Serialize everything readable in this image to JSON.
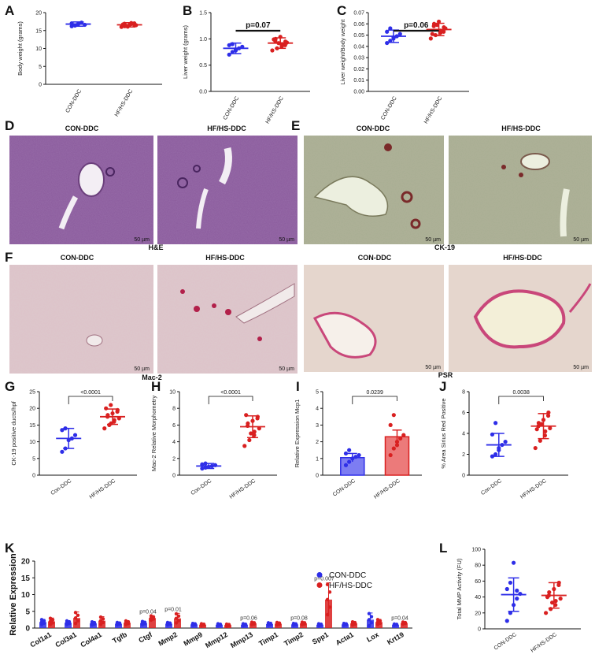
{
  "colors": {
    "con": "#2e2ee8",
    "hf": "#d92020",
    "he_bg": "#8a5a9c",
    "ck_bg": "#a7ae92",
    "mac_bg": "#dcc9cc",
    "psr_bg": "#e5d6cd"
  },
  "panel_letters": [
    "A",
    "B",
    "C",
    "D",
    "E",
    "F",
    "G",
    "H",
    "I",
    "J",
    "K",
    "L"
  ],
  "micrographs": {
    "D": {
      "titles": [
        "CON-DDC",
        "HF/HS-DDC"
      ],
      "caption": "H&E",
      "scale": "50 µm"
    },
    "E": {
      "titles": [
        "CON-DDC",
        "HF/HS-DDC"
      ],
      "caption": "CK-19",
      "scale": "50 µm"
    },
    "F_mac": {
      "titles": [
        "CON-DDC",
        "HF/HS-DDC"
      ],
      "caption": "Mac-2",
      "scale": "50 µm"
    },
    "F_psr": {
      "titles": [
        "CON-DDC",
        "HF/HS-DDC"
      ],
      "caption": "PSR",
      "scale": "50 µm"
    }
  },
  "chart_data": [
    {
      "id": "A",
      "type": "scatter",
      "ylabel": "Body weight (grams)",
      "ylim": [
        0,
        20
      ],
      "yticks": [
        "0",
        "5",
        "10",
        "15",
        "20"
      ],
      "categories": [
        "CON-DDC",
        "HF/HS-DDC"
      ],
      "groups": [
        {
          "name": "CON-DDC",
          "mean": 16.8,
          "sd": 0.6,
          "points": [
            16.2,
            16.5,
            16.9,
            17.2,
            16.6,
            17.0,
            16.4,
            16.8
          ]
        },
        {
          "name": "HF/HS-DDC",
          "mean": 16.6,
          "sd": 0.6,
          "points": [
            16.0,
            16.3,
            16.8,
            17.1,
            16.5,
            16.9,
            16.2,
            16.6,
            17.0,
            16.4,
            16.7,
            16.1
          ]
        }
      ],
      "stat": ""
    },
    {
      "id": "B",
      "type": "scatter",
      "ylabel": "Liver weight (grams)",
      "ylim": [
        0,
        1.5
      ],
      "yticks": [
        "0.0",
        "0.5",
        "1.0",
        "1.5"
      ],
      "categories": [
        "CON-DDC",
        "HF/HS-DDC"
      ],
      "groups": [
        {
          "name": "CON-DDC",
          "mean": 0.82,
          "sd": 0.1,
          "points": [
            0.7,
            0.75,
            0.78,
            0.82,
            0.85,
            0.88,
            0.9,
            0.8
          ]
        },
        {
          "name": "HF/HS-DDC",
          "mean": 0.92,
          "sd": 0.1,
          "points": [
            0.78,
            0.82,
            0.86,
            0.9,
            0.93,
            0.96,
            1.0,
            1.04,
            0.88,
            0.95,
            0.99,
            0.92
          ]
        }
      ],
      "stat": "p=0.07"
    },
    {
      "id": "C",
      "type": "scatter",
      "ylabel": "Liver weight/Body weight",
      "ylim": [
        0,
        0.07
      ],
      "yticks": [
        "0.00",
        "0.01",
        "0.02",
        "0.03",
        "0.04",
        "0.05",
        "0.06",
        "0.07"
      ],
      "categories": [
        "CON-DDC",
        "HF/HS-DDC"
      ],
      "groups": [
        {
          "name": "CON-DDC",
          "mean": 0.049,
          "sd": 0.0055,
          "points": [
            0.043,
            0.045,
            0.047,
            0.049,
            0.051,
            0.053,
            0.056,
            0.048
          ]
        },
        {
          "name": "HF/HS-DDC",
          "mean": 0.055,
          "sd": 0.0055,
          "points": [
            0.047,
            0.05,
            0.052,
            0.054,
            0.056,
            0.058,
            0.06,
            0.062,
            0.053,
            0.057,
            0.051,
            0.059
          ]
        }
      ],
      "stat": "p=0.06"
    },
    {
      "id": "G",
      "type": "scatter",
      "ylabel": "CK-19 positive ducts/hpf",
      "ylim": [
        0,
        25
      ],
      "yticks": [
        "0",
        "5",
        "10",
        "15",
        "20",
        "25"
      ],
      "categories": [
        "Con-DDC",
        "HF/HS-DDC"
      ],
      "groups": [
        {
          "name": "Con-DDC",
          "mean": 11.0,
          "sd": 3.0,
          "points": [
            7.0,
            8.0,
            10.5,
            11.0,
            12.0,
            13.5,
            14.0
          ]
        },
        {
          "name": "HF/HS-DDC",
          "mean": 17.5,
          "sd": 2.3,
          "points": [
            14.0,
            15.0,
            16.0,
            16.5,
            17.0,
            17.5,
            18.0,
            18.5,
            19.0,
            19.5,
            20.0,
            21.0,
            15.5
          ]
        }
      ],
      "stat": "<0.0001"
    },
    {
      "id": "H",
      "type": "scatter",
      "ylabel": "Mac-2 Relative Morphometry",
      "ylim": [
        0,
        10
      ],
      "yticks": [
        "0",
        "2",
        "4",
        "6",
        "8",
        "10"
      ],
      "categories": [
        "Con-DDC",
        "HF/HS-DDC"
      ],
      "groups": [
        {
          "name": "Con-DDC",
          "mean": 1.1,
          "sd": 0.3,
          "points": [
            0.8,
            0.9,
            1.0,
            1.1,
            1.2,
            1.3,
            1.4
          ]
        },
        {
          "name": "HF/HS-DDC",
          "mean": 5.8,
          "sd": 1.3,
          "points": [
            3.5,
            4.2,
            4.8,
            5.2,
            5.6,
            5.9,
            6.2,
            6.5,
            6.8,
            7.0,
            7.2,
            5.0
          ]
        }
      ],
      "stat": "<0.0001"
    },
    {
      "id": "I",
      "type": "bar",
      "ylabel": "Relative Expression Mcp1",
      "ylim": [
        0,
        5
      ],
      "yticks": [
        "0",
        "1",
        "2",
        "3",
        "4",
        "5"
      ],
      "categories": [
        "CON-DDC",
        "HF/HS-DDC"
      ],
      "groups": [
        {
          "name": "CON-DDC",
          "mean": 1.05,
          "sem": 0.25,
          "points": [
            0.6,
            0.8,
            1.0,
            1.1,
            1.2,
            1.3,
            1.5
          ]
        },
        {
          "name": "HF/HS-DDC",
          "mean": 2.3,
          "sem": 0.4,
          "points": [
            1.2,
            1.6,
            2.0,
            2.2,
            2.4,
            3.0,
            3.6,
            1.8
          ]
        }
      ],
      "stat": "0.0239"
    },
    {
      "id": "J",
      "type": "scatter",
      "ylabel": "% Area Sirius Red Positive",
      "ylim": [
        0,
        8
      ],
      "yticks": [
        "0",
        "2",
        "4",
        "6",
        "8"
      ],
      "categories": [
        "Con-DDC",
        "HF/HS-DDC"
      ],
      "groups": [
        {
          "name": "Con-DDC",
          "mean": 2.9,
          "sd": 1.1,
          "points": [
            1.8,
            2.0,
            2.4,
            2.9,
            3.2,
            3.9,
            5.0,
            2.6
          ]
        },
        {
          "name": "HF/HS-DDC",
          "mean": 4.7,
          "sd": 1.2,
          "points": [
            2.6,
            3.3,
            3.8,
            4.2,
            4.5,
            4.7,
            5.0,
            5.3,
            5.7,
            6.0,
            4.4,
            4.9
          ]
        }
      ],
      "stat": "0.0038"
    },
    {
      "id": "K",
      "type": "bar",
      "ylabel": "Relative Expression",
      "ylim": [
        0,
        20
      ],
      "yticks": [
        "0",
        "5",
        "10",
        "15",
        "20"
      ],
      "categories": [
        "Col1a1",
        "Col3a1",
        "Col4a1",
        "Tgfb",
        "Ctgf",
        "Mmp2",
        "Mmp9",
        "Mmp12",
        "Mmp13",
        "Timp1",
        "Timp2",
        "Spp1",
        "Acta1",
        "Lox",
        "Krt19"
      ],
      "series": [
        {
          "name": "CON-DDC",
          "values": [
            1.8,
            1.6,
            1.4,
            1.3,
            1.5,
            1.3,
            1.1,
            1.0,
            1.0,
            1.2,
            1.1,
            1.0,
            1.1,
            2.5,
            1.0
          ],
          "errors": [
            0.8,
            0.6,
            0.5,
            0.4,
            0.5,
            0.4,
            0.3,
            0.3,
            0.3,
            0.4,
            0.3,
            0.3,
            0.3,
            2.0,
            0.2
          ]
        },
        {
          "name": "HF/HS-DDC",
          "values": [
            2.0,
            3.0,
            2.2,
            1.6,
            3.0,
            2.9,
            1.0,
            0.9,
            1.4,
            1.3,
            1.4,
            8.5,
            1.4,
            1.8,
            1.5
          ],
          "errors": [
            1.0,
            1.8,
            1.2,
            0.6,
            0.7,
            1.5,
            0.3,
            0.3,
            0.4,
            0.4,
            0.4,
            5.0,
            0.5,
            0.8,
            0.3
          ]
        }
      ],
      "pvalues": [
        {
          "category": "Ctgf",
          "text": "p=0.04"
        },
        {
          "category": "Mmp2",
          "text": "p=0.01"
        },
        {
          "category": "Mmp13",
          "text": "p=0.06"
        },
        {
          "category": "Timp2",
          "text": "p=0.08"
        },
        {
          "category": "Spp1",
          "text": "p=0.007"
        },
        {
          "category": "Krt19",
          "text": "p=0.04"
        }
      ],
      "legend": [
        "CON-DDC",
        "HF/HS-DDC"
      ],
      "legend_position": "top-right"
    },
    {
      "id": "L",
      "type": "scatter",
      "ylabel": "Total MMP Activity (FU)",
      "ylim": [
        0,
        100
      ],
      "yticks": [
        "0",
        "20",
        "40",
        "60",
        "80",
        "100"
      ],
      "categories": [
        "CON-DDC",
        "HF/HS-DDC"
      ],
      "groups": [
        {
          "name": "CON-DDC",
          "mean": 43,
          "sd": 21,
          "points": [
            10,
            20,
            30,
            38,
            44,
            50,
            58,
            83,
            48
          ]
        },
        {
          "name": "HF/HS-DDC",
          "mean": 42,
          "sd": 16,
          "points": [
            20,
            25,
            30,
            35,
            38,
            42,
            46,
            50,
            55,
            58,
            40,
            33
          ]
        }
      ],
      "stat": ""
    }
  ]
}
